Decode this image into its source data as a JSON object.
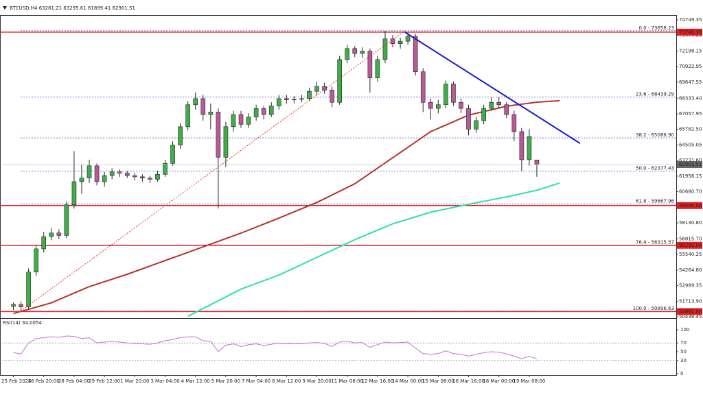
{
  "chart_data": {
    "type": "candlestick",
    "title": "BTCUSD,H4  63281.21 63295.61 61899.41 62901.51",
    "categories": [
      "25 Feb 2024",
      null,
      null,
      null,
      "26 Feb 20:00",
      null,
      null,
      null,
      "28 Feb 04:00",
      null,
      null,
      null,
      "29 Feb 12:00",
      null,
      null,
      null,
      "1 Mar 20:00",
      null,
      null,
      null,
      "3 Mar 04:00",
      null,
      null,
      null,
      "4 Mar 12:00",
      null,
      null,
      null,
      "5 Mar 20:00",
      null,
      null,
      null,
      "7 Mar 04:00",
      null,
      null,
      null,
      "8 Mar 12:00",
      null,
      null,
      null,
      "9 Mar 20:00",
      null,
      null,
      null,
      "11 Mar 08:00",
      null,
      null,
      null,
      "12 Mar 16:00",
      null,
      null,
      null,
      "14 Mar 00:00",
      null,
      null,
      null,
      "15 Mar 08:00",
      null,
      null,
      null,
      "16 Mar 16:00",
      null,
      null,
      null,
      "18 Mar 00:00",
      null,
      null,
      null,
      "19 Mar 08:00",
      null
    ],
    "open": [
      51300,
      51450,
      51250,
      54100,
      56000,
      57000,
      57300,
      57100,
      59600,
      61500,
      61800,
      62800,
      61500,
      62000,
      62300,
      62200,
      62000,
      61900,
      61800,
      61700,
      62100,
      63000,
      64500,
      66000,
      67800,
      68300,
      67000,
      67200,
      63500,
      66000,
      67000,
      66200,
      66800,
      67500,
      67000,
      67700,
      68300,
      68200,
      68250,
      68300,
      68900,
      69300,
      69000,
      68000,
      71500,
      72400,
      72000,
      72200,
      70000,
      71500,
      73200,
      72800,
      73000,
      73400,
      70500,
      68000,
      67500,
      67800,
      69500,
      68000,
      67500,
      65800,
      66500,
      67500,
      68000,
      67800,
      67000,
      65600,
      63300,
      63281.21
    ],
    "high": [
      51600,
      51700,
      54400,
      56300,
      57400,
      57700,
      57600,
      59900,
      64000,
      62900,
      63300,
      63000,
      62300,
      62600,
      62500,
      62400,
      62200,
      62100,
      62000,
      62400,
      63300,
      64800,
      66300,
      68100,
      68800,
      68600,
      67900,
      67500,
      66400,
      67300,
      67300,
      67100,
      67800,
      67700,
      68000,
      68600,
      68600,
      68500,
      68600,
      69200,
      69700,
      69600,
      69300,
      71800,
      72700,
      72600,
      72500,
      72400,
      71800,
      73858.23,
      73500,
      73300,
      73700,
      73600,
      70800,
      68300,
      68200,
      69800,
      69700,
      68300,
      67800,
      66800,
      67800,
      68400,
      68400,
      68000,
      67300,
      65900,
      65800,
      63295.61
    ],
    "low": [
      51000,
      50900,
      51100,
      53800,
      55700,
      56700,
      56800,
      56900,
      59300,
      60500,
      61400,
      61200,
      61100,
      61700,
      61900,
      61800,
      61600,
      61500,
      61400,
      61500,
      61900,
      62800,
      64200,
      65700,
      67400,
      66500,
      65800,
      59300,
      62700,
      65600,
      65900,
      65900,
      66500,
      66600,
      66800,
      67400,
      67900,
      67900,
      68000,
      68100,
      68600,
      68700,
      67600,
      67800,
      71200,
      71700,
      71600,
      68800,
      69700,
      71200,
      72500,
      72400,
      72700,
      70200,
      67200,
      66600,
      67100,
      67500,
      67700,
      67100,
      65300,
      65500,
      66200,
      67300,
      67500,
      66700,
      64800,
      62400,
      62800,
      61899.41
    ],
    "close": [
      51450,
      51250,
      54100,
      56000,
      57000,
      57300,
      57100,
      59600,
      61500,
      61800,
      62800,
      61500,
      62000,
      62300,
      62200,
      62000,
      61900,
      61800,
      61700,
      62100,
      63000,
      64500,
      66000,
      67800,
      68300,
      67000,
      67200,
      63500,
      66000,
      67000,
      66200,
      66800,
      67500,
      67000,
      67700,
      68300,
      68200,
      68250,
      68300,
      68900,
      69300,
      69000,
      68000,
      71500,
      72400,
      72000,
      72200,
      70000,
      71500,
      73200,
      72800,
      73000,
      73400,
      70500,
      68000,
      67500,
      67800,
      69500,
      68000,
      67500,
      65800,
      66500,
      67500,
      68000,
      67800,
      67000,
      65600,
      63300,
      65200,
      62901.51
    ],
    "up_color": "#3fae49",
    "down_color": "#b85a95",
    "ylim": [
      50438.45,
      74749.35
    ],
    "yticks": [
      74749.35,
      73474.85,
      72198.15,
      70922.95,
      69647.55,
      {
        "value": 68333.4,
        "label": "68333.40"
      },
      67057.95,
      {
        "value": 65782.5,
        "label": "65782.50"
      },
      64505.05,
      {
        "value": 63231.6,
        "label": "63231.60"
      },
      61956.15,
      {
        "value": 60680.7,
        "label": "60680.70"
      },
      59405.25,
      {
        "value": 58130.8,
        "label": "58130.80"
      },
      {
        "value": 56815.7,
        "label": "56815.70"
      },
      55540.25,
      {
        "value": 54264.8,
        "label": "54264.80"
      },
      52989.35,
      {
        "value": 51713.9,
        "label": "51713.90"
      },
      50438.45
    ],
    "levels": [
      {
        "value": 73746.39,
        "label": "73746.39"
      },
      {
        "value": 59545.06,
        "label": "59545.06"
      },
      {
        "value": 56290.04,
        "label": "56290.04"
      },
      {
        "value": 50865,
        "label": "50865.00"
      }
    ],
    "level_color": "#e02020",
    "fib": [
      {
        "value": 73858.23,
        "label": "0.0 - 73858.23"
      },
      {
        "value": 68439.29,
        "label": "23.6 - 68439.29"
      },
      {
        "value": 65086.9,
        "label": "38.2 - 65086.90"
      },
      {
        "value": 62377.43,
        "label": "50.0 - 62377.43"
      },
      {
        "value": 59667.96,
        "label": "61.8 - 59667.96"
      },
      {
        "value": 56315.57,
        "label": "76.4 - 56315.57"
      },
      {
        "value": 50896.63,
        "label": "100.0 - 50896.63"
      }
    ],
    "fib_color": "#3a3ad0",
    "lines": [
      {
        "color": "#b8302a",
        "x": [
          0,
          5,
          10,
          15,
          20,
          25,
          30,
          35,
          40,
          45,
          50,
          55,
          60,
          65,
          69,
          72
        ],
        "values": [
          50700,
          51580,
          52910,
          53920,
          55040,
          56160,
          57290,
          58520,
          59800,
          61330,
          63460,
          65600,
          66950,
          67680,
          68010,
          68130
        ]
      },
      {
        "color": "#2fe0a8",
        "x": [
          23,
          30,
          35,
          40,
          45,
          50,
          55,
          60,
          65,
          69,
          72
        ],
        "values": [
          50480,
          52700,
          53850,
          55300,
          56750,
          58050,
          59000,
          59650,
          60250,
          60800,
          61390
        ]
      }
    ],
    "trendlines": [
      {
        "color": "#1a1ad0",
        "style": "solid",
        "x": [
          51.6,
          74.7
        ],
        "values": [
          73746.39,
          64640
        ]
      },
      {
        "color": "#e03030",
        "style": "dotted",
        "x": [
          0.95,
          51.6
        ],
        "values": [
          50896.63,
          73858.23
        ]
      }
    ],
    "rsi": {
      "title": "RSI(14) 34.0054",
      "color": "#c86bd6",
      "ylim": [
        0,
        100
      ],
      "yticks": [
        100,
        70,
        50,
        30,
        0
      ],
      "levels": [
        70,
        30
      ],
      "values": [
        48,
        45,
        70,
        80,
        82,
        84,
        83,
        86,
        85,
        80,
        82,
        70,
        72,
        74,
        72,
        70,
        69,
        68,
        67,
        70,
        75,
        78,
        82,
        84,
        84,
        75,
        74,
        50,
        65,
        68,
        62,
        66,
        68,
        64,
        67,
        70,
        68,
        68,
        69,
        70,
        71,
        69,
        62,
        72,
        74,
        70,
        71,
        60,
        66,
        72,
        70,
        71,
        72,
        58,
        46,
        44,
        46,
        52,
        46,
        44,
        40,
        44,
        48,
        50,
        49,
        45,
        40,
        34,
        40,
        34.0054
      ]
    }
  }
}
